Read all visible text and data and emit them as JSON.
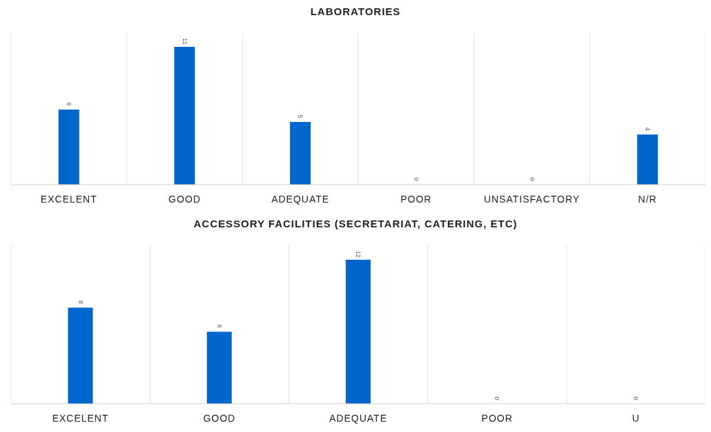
{
  "chart_data": [
    {
      "type": "bar",
      "title": "LABORATORIES",
      "categories": [
        "EXCELENT",
        "GOOD",
        "ADEQUATE",
        "POOR",
        "UNSATISFACTORY",
        "N/R"
      ],
      "values": [
        6,
        11,
        5,
        0,
        0,
        4
      ],
      "color": "#0066cc",
      "data_labels": true,
      "grid": "x"
    },
    {
      "type": "bar",
      "title": "ACCESSORY FACILITIES (SECRETARIAT, CATERING, ETC)",
      "categories": [
        "EXCELENT",
        "GOOD",
        "ADEQUATE",
        "POOR",
        "U"
      ],
      "values": [
        8,
        6,
        12,
        0,
        0
      ],
      "color": "#0066cc",
      "data_labels": true,
      "grid": "x"
    }
  ]
}
